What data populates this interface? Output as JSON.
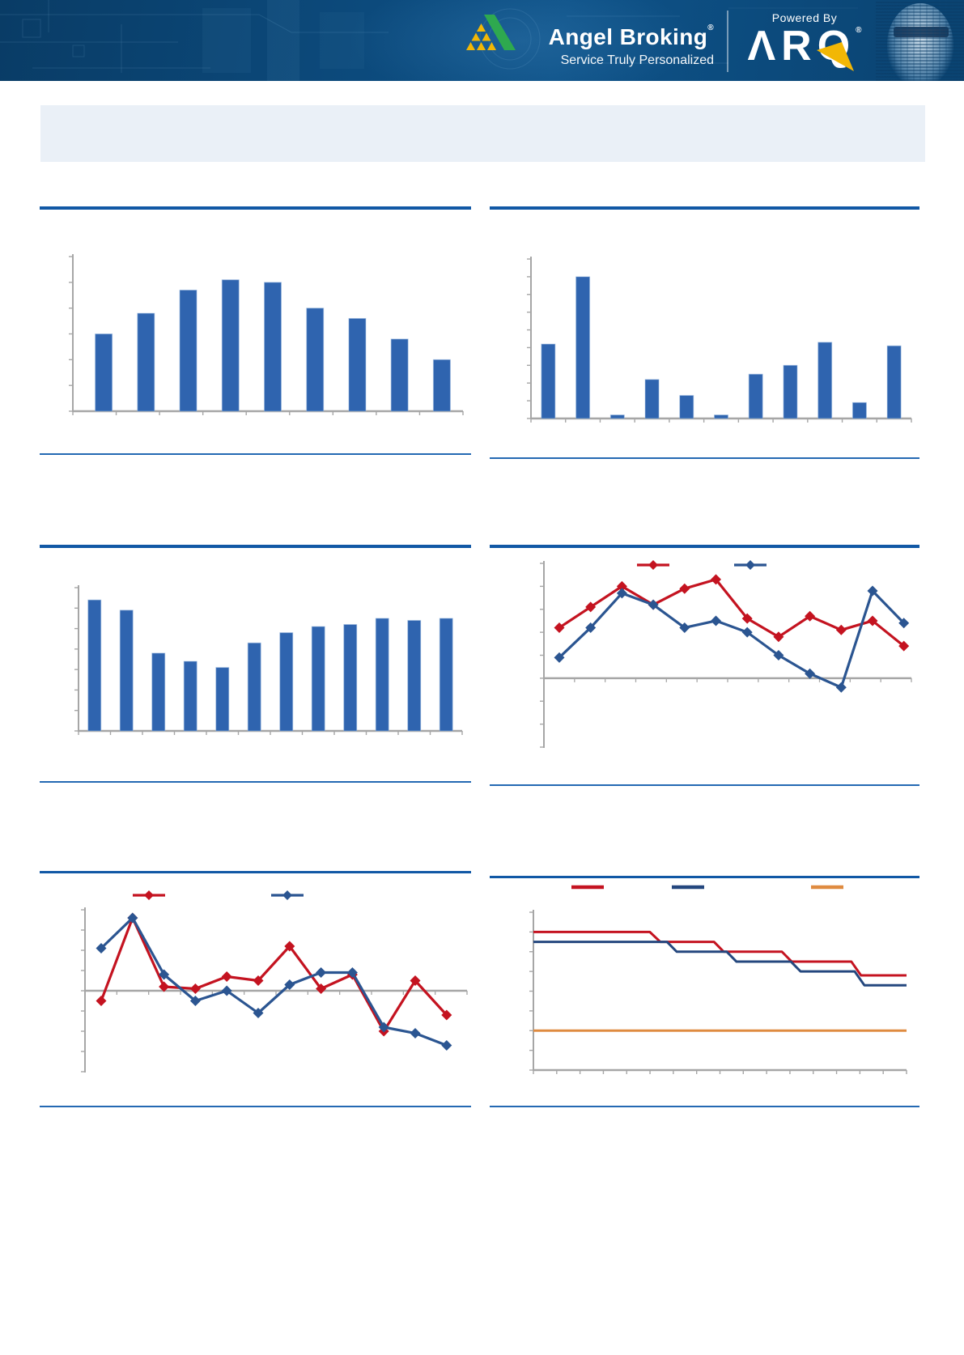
{
  "header": {
    "brand": "Angel Broking",
    "brand_reg": "®",
    "tagline": "Service Truly Personalized",
    "powered_by": "Powered By",
    "arq": "ARQ",
    "arq_reg": "®"
  },
  "title_box": {
    "text": ""
  },
  "colors": {
    "bar_blue": "#2F64AF",
    "bar_edge": "#9BB9E0",
    "line_red": "#C41320",
    "line_blue": "#2B5591",
    "step_red": "#C41320",
    "step_navy": "#24477E",
    "step_orange": "#DF8B40",
    "rule_thick": "#1158A5",
    "rule_thin": "#2469B3",
    "axis_gray": "#A6A6A6",
    "title_box_bg": "#EAF0F7",
    "header_bg": "#0C4878",
    "logo_green": "#2EA94F",
    "logo_yellow": "#F2B705"
  },
  "chart_data": [
    {
      "id": "exhibit-1",
      "type": "bar",
      "title": "",
      "values": [
        3.0,
        3.8,
        4.7,
        5.1,
        5.0,
        4.0,
        3.6,
        2.8,
        2.0
      ],
      "ylim": [
        0,
        6
      ],
      "yticks": 7,
      "xticks": 10,
      "grid": false,
      "color_key": "bar_blue"
    },
    {
      "id": "exhibit-2",
      "type": "bar",
      "title": "",
      "values": [
        4.2,
        8.0,
        0.2,
        2.2,
        1.3,
        0.2,
        2.5,
        3.0,
        4.3,
        0.9,
        4.1
      ],
      "ylim": [
        0,
        9
      ],
      "yticks": 10,
      "xticks": 12,
      "grid": false,
      "color_key": "bar_blue"
    },
    {
      "id": "exhibit-3",
      "type": "bar",
      "title": "",
      "values": [
        6.4,
        5.9,
        3.8,
        3.4,
        3.1,
        4.3,
        4.8,
        5.1,
        5.2,
        5.5,
        5.4,
        5.5
      ],
      "ylim": [
        0,
        7
      ],
      "yticks": 8,
      "xticks": 13,
      "grid": false,
      "color_key": "bar_blue"
    },
    {
      "id": "exhibit-4",
      "type": "line",
      "title": "",
      "legend_position": "top",
      "ylim": [
        -3,
        5
      ],
      "yticks": 9,
      "series": [
        {
          "name": "series-red",
          "label": "",
          "color_key": "line_red",
          "values": [
            2.2,
            3.1,
            4.0,
            3.2,
            3.9,
            4.3,
            2.6,
            1.8,
            2.7,
            2.1,
            2.5,
            1.4
          ]
        },
        {
          "name": "series-blue",
          "label": "",
          "color_key": "line_blue",
          "values": [
            0.9,
            2.2,
            3.7,
            3.2,
            2.2,
            2.5,
            2.0,
            1.0,
            0.2,
            -0.4,
            3.8,
            2.4
          ]
        }
      ]
    },
    {
      "id": "exhibit-5",
      "type": "line",
      "title": "",
      "legend_position": "top",
      "ylim": [
        -4,
        4
      ],
      "yticks": 9,
      "series": [
        {
          "name": "series-red",
          "label": "",
          "color_key": "line_red",
          "values": [
            -0.5,
            3.6,
            0.2,
            0.1,
            0.7,
            0.5,
            2.2,
            0.1,
            0.8,
            -2.0,
            0.5,
            -1.2
          ]
        },
        {
          "name": "series-blue",
          "label": "",
          "color_key": "line_blue",
          "values": [
            2.1,
            3.6,
            0.8,
            -0.5,
            0.0,
            -1.1,
            0.3,
            0.9,
            0.9,
            -1.8,
            -2.1,
            -2.7
          ]
        }
      ]
    },
    {
      "id": "exhibit-6",
      "type": "step",
      "title": "",
      "legend_position": "top",
      "ylim": [
        0,
        8
      ],
      "yticks": 9,
      "xticks": 17,
      "series": [
        {
          "name": "step-red",
          "label": "",
          "color_key": "step_red",
          "points": [
            [
              0,
              7.0
            ],
            [
              0.312,
              7.0
            ],
            [
              0.34,
              6.5
            ],
            [
              0.484,
              6.5
            ],
            [
              0.51,
              6.0
            ],
            [
              0.666,
              6.0
            ],
            [
              0.692,
              5.5
            ],
            [
              0.852,
              5.5
            ],
            [
              0.878,
              4.8
            ],
            [
              1,
              4.8
            ]
          ]
        },
        {
          "name": "step-navy",
          "label": "",
          "color_key": "step_navy",
          "points": [
            [
              0,
              6.5
            ],
            [
              0.358,
              6.5
            ],
            [
              0.384,
              6.0
            ],
            [
              0.518,
              6.0
            ],
            [
              0.544,
              5.5
            ],
            [
              0.69,
              5.5
            ],
            [
              0.716,
              5.0
            ],
            [
              0.861,
              5.0
            ],
            [
              0.887,
              4.3
            ],
            [
              1,
              4.3
            ]
          ]
        },
        {
          "name": "step-orange",
          "label": "",
          "color_key": "step_orange",
          "points": [
            [
              0,
              2.0
            ],
            [
              1,
              2.0
            ]
          ]
        }
      ]
    }
  ]
}
